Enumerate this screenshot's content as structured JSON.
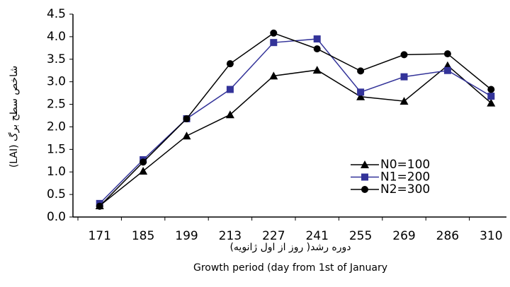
{
  "chart_data": {
    "type": "line",
    "categories": [
      "171",
      "185",
      "199",
      "213",
      "227",
      "241",
      "255",
      "269",
      "286",
      "310"
    ],
    "series": [
      {
        "name": "N0=100",
        "color": "#000000",
        "marker": "triangle",
        "values": [
          0.25,
          1.02,
          1.8,
          2.27,
          3.13,
          3.26,
          2.67,
          2.57,
          3.36,
          2.53
        ]
      },
      {
        "name": "N1=200",
        "color": "#333399",
        "marker": "square",
        "values": [
          0.3,
          1.27,
          2.18,
          2.83,
          3.87,
          3.95,
          2.77,
          3.11,
          3.25,
          2.68
        ]
      },
      {
        "name": "N2=300",
        "color": "#000000",
        "marker": "circle",
        "values": [
          0.24,
          1.22,
          2.18,
          3.4,
          4.08,
          3.73,
          3.24,
          3.6,
          3.62,
          2.83
        ]
      }
    ],
    "ylim": [
      0,
      4.5
    ],
    "yticks": [
      {
        "value": 0,
        "label": "0.0"
      },
      0.5,
      {
        "value": 1,
        "label": "1.0"
      },
      1.5,
      {
        "value": 2,
        "label": "2.0"
      },
      2.5,
      {
        "value": 3,
        "label": "3.0"
      },
      3.5,
      {
        "value": 4,
        "label": "4.0"
      },
      4.5
    ],
    "ylabel": "(LAI) شاخص سطح برگ",
    "xlabel": [
      "دوره رشد( روز از اول ژانویه)",
      "Growth period (day from 1st of January"
    ],
    "grid": false,
    "legend": "lower right"
  }
}
